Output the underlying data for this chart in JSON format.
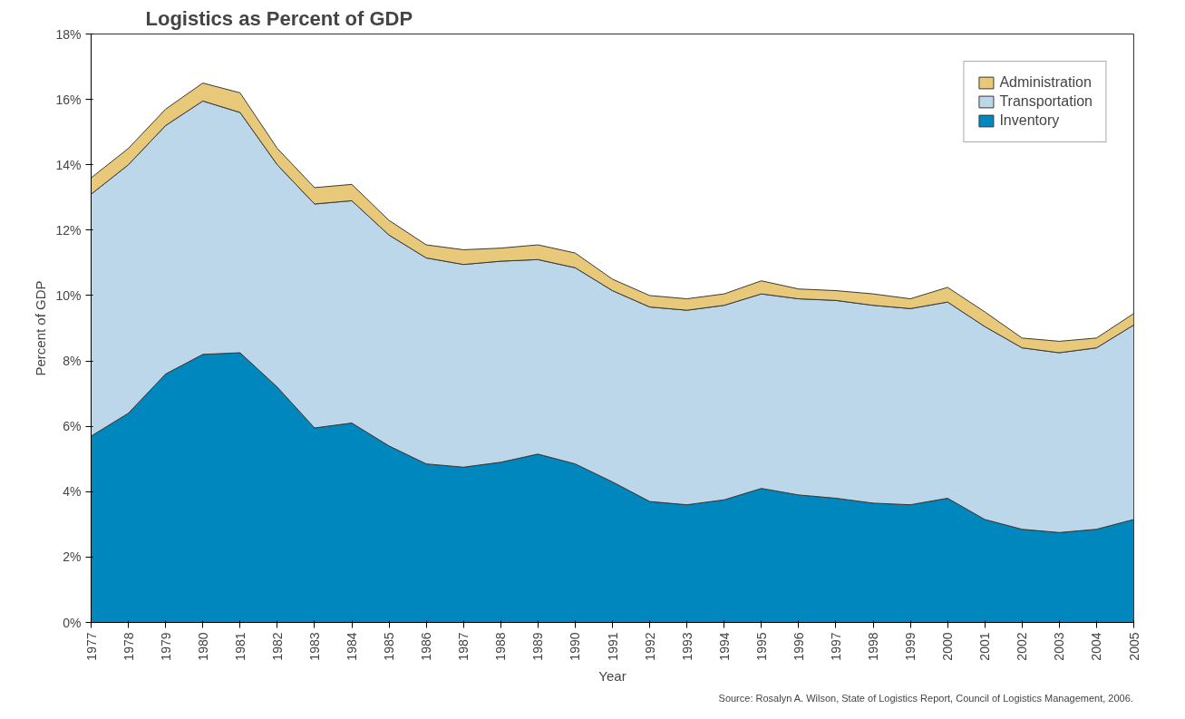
{
  "chart_data": {
    "type": "area",
    "stacked": true,
    "title": "Logistics as Percent of GDP",
    "xlabel": "Year",
    "ylabel": "Percent of GDP",
    "annotations": [
      "Source: Rosalyn A. Wilson, State of Logistics Report, Council of Logistics Management, 2006."
    ],
    "x": [
      1977,
      1978,
      1979,
      1980,
      1981,
      1982,
      1983,
      1984,
      1985,
      1986,
      1987,
      1988,
      1989,
      1990,
      1991,
      1992,
      1993,
      1994,
      1995,
      1996,
      1997,
      1998,
      1999,
      2000,
      2001,
      2002,
      2003,
      2004,
      2005
    ],
    "series": [
      {
        "name": "Inventory",
        "color": "#0087be",
        "values": [
          5.7,
          6.4,
          7.6,
          8.2,
          8.25,
          7.2,
          5.95,
          6.1,
          5.4,
          4.85,
          4.75,
          4.9,
          5.15,
          4.85,
          4.3,
          3.7,
          3.6,
          3.75,
          4.1,
          3.9,
          3.8,
          3.65,
          3.6,
          3.8,
          3.15,
          2.85,
          2.75,
          2.85,
          3.15
        ]
      },
      {
        "name": "Transportation",
        "color": "#bcd6ea",
        "values": [
          7.4,
          7.6,
          7.6,
          7.75,
          7.35,
          6.8,
          6.85,
          6.8,
          6.45,
          6.3,
          6.2,
          6.15,
          5.95,
          6.0,
          5.85,
          5.95,
          5.95,
          5.95,
          5.95,
          6.0,
          6.05,
          6.05,
          6.0,
          6.0,
          5.9,
          5.55,
          5.5,
          5.55,
          5.95
        ]
      },
      {
        "name": "Administration",
        "color": "#e8c97a",
        "values": [
          0.5,
          0.5,
          0.5,
          0.55,
          0.6,
          0.5,
          0.5,
          0.5,
          0.45,
          0.4,
          0.45,
          0.4,
          0.45,
          0.45,
          0.35,
          0.35,
          0.35,
          0.35,
          0.4,
          0.3,
          0.3,
          0.35,
          0.3,
          0.45,
          0.45,
          0.3,
          0.35,
          0.3,
          0.35
        ]
      }
    ],
    "xlim": [
      1977,
      2005
    ],
    "xticks": [
      1977,
      1978,
      1979,
      1980,
      1981,
      1982,
      1983,
      1984,
      1985,
      1986,
      1987,
      1988,
      1989,
      1990,
      1991,
      1992,
      1993,
      1994,
      1995,
      1996,
      1997,
      1998,
      1999,
      2000,
      2001,
      2002,
      2003,
      2004,
      2005
    ],
    "ylim": [
      0,
      18
    ],
    "yticks": [
      {
        "value": 0,
        "label": "0%"
      },
      {
        "value": 2,
        "label": "2%"
      },
      {
        "value": 4,
        "label": "4%"
      },
      {
        "value": 6,
        "label": "6%"
      },
      {
        "value": 8,
        "label": "8%"
      },
      {
        "value": 10,
        "label": "10%"
      },
      {
        "value": 12,
        "label": "12%"
      },
      {
        "value": 14,
        "label": "14%"
      },
      {
        "value": 16,
        "label": "16%"
      },
      {
        "value": 18,
        "label": "18%"
      }
    ],
    "legend": "top right",
    "grid": false
  }
}
